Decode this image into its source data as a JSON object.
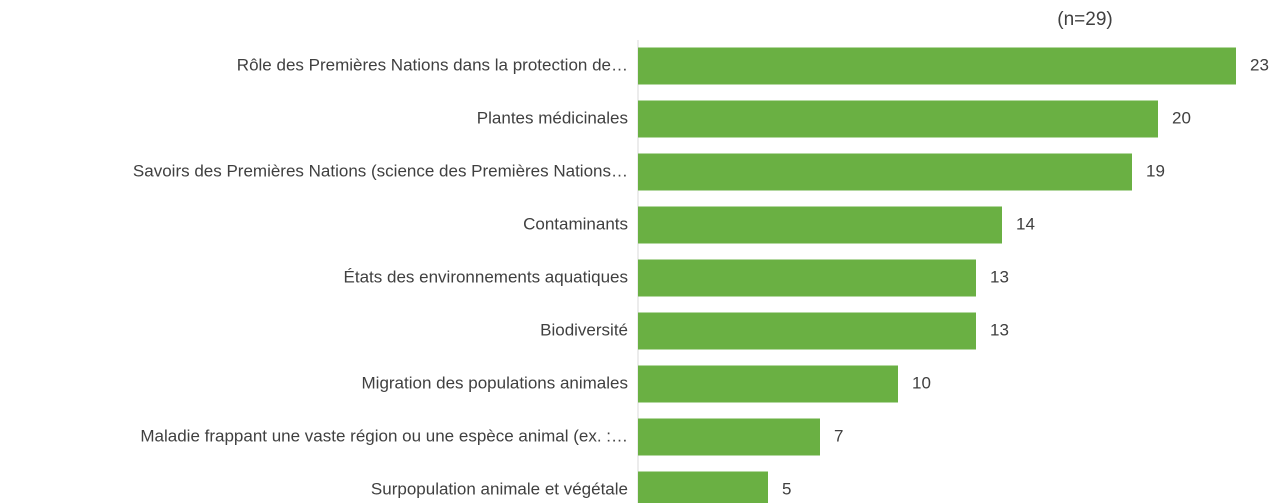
{
  "chart_data": {
    "type": "bar",
    "orientation": "horizontal",
    "subtitle": "(n=29)",
    "categories": [
      "Rôle des Premières Nations dans la protection de…",
      "Plantes médicinales",
      "Savoirs des Premières Nations (science des Premières Nations…",
      "Contaminants",
      "États des environnements aquatiques",
      "Biodiversité",
      "Migration des populations animales",
      "Maladie frappant une vaste région ou une espèce animal (ex. :…",
      "Surpopulation animale et végétale"
    ],
    "values": [
      23,
      20,
      19,
      14,
      13,
      13,
      10,
      7,
      5
    ],
    "color": "#6ab043"
  }
}
